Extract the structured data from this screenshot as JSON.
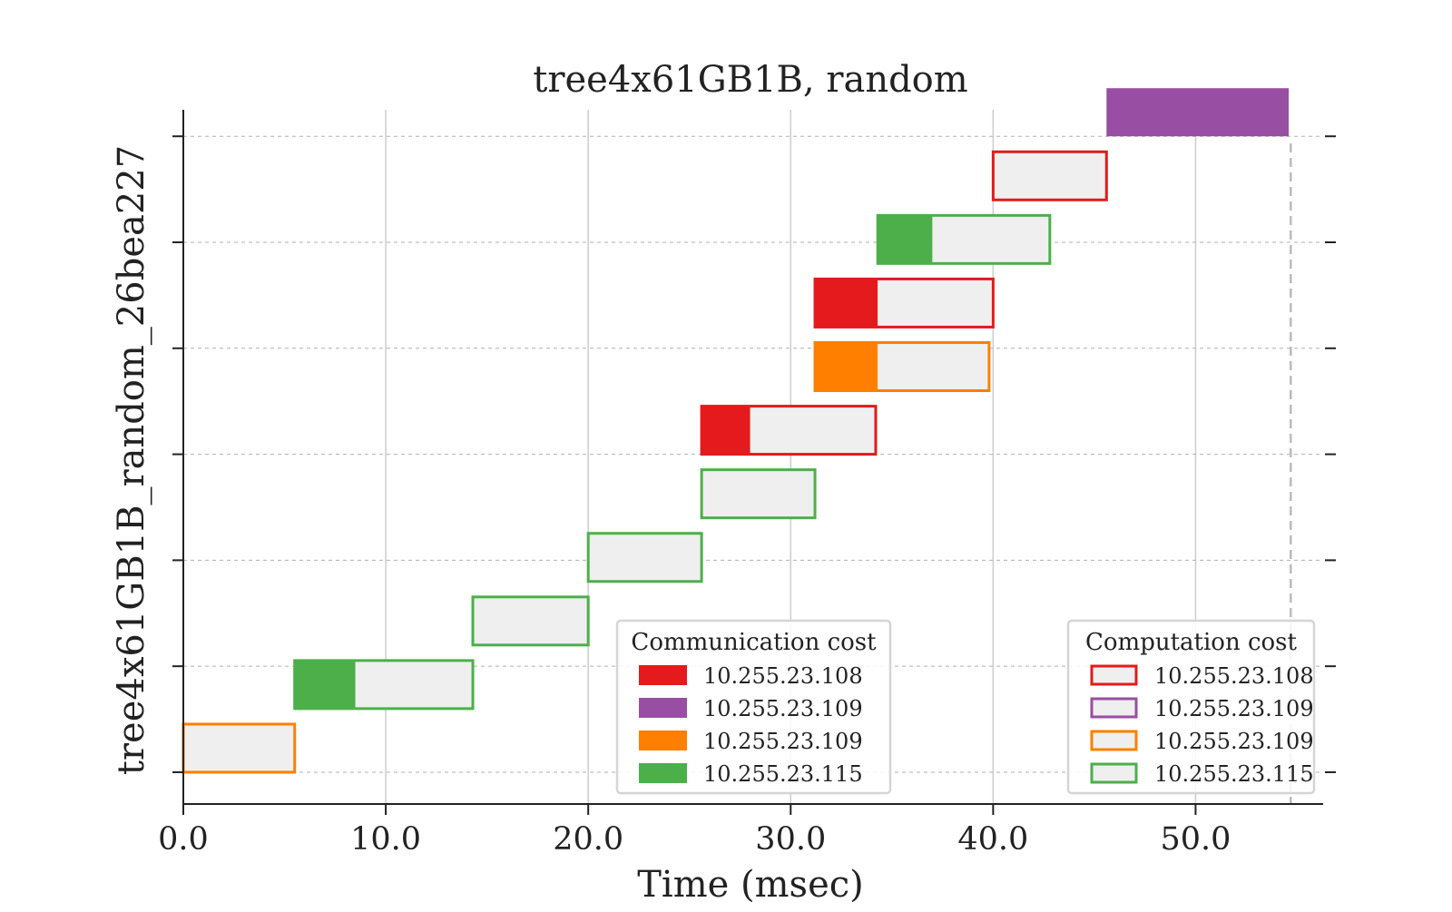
{
  "chart_data": {
    "type": "gantt",
    "title": "tree4x61GB1B, random",
    "xlabel": "Time (msec)",
    "ylabel": "tree4x61GB1B_random_26bea227",
    "xlim": [
      0,
      56.3
    ],
    "xticks": [
      0,
      10,
      20,
      30,
      40,
      50
    ],
    "xtick_labels": [
      "0.0",
      "10.0",
      "20.0",
      "30.0",
      "40.0",
      "50.0"
    ],
    "ylim": [
      -0.3,
      6.25
    ],
    "yticks": [
      0,
      1,
      2,
      3,
      4,
      5,
      6
    ],
    "end_marker_x": 54.7,
    "grid": {
      "x": true,
      "y": true
    },
    "colors": {
      "10.255.23.108": "#e41a1c",
      "10.255.23.109a": "#984ea3",
      "10.255.23.109b": "#ff7f00",
      "10.255.23.115": "#4daf4a",
      "compute_fill": "#efefef"
    },
    "legends": {
      "communication": {
        "title": "Communication cost",
        "placement": "lower-center",
        "entries": [
          {
            "label": "10.255.23.108",
            "color": "#e41a1c"
          },
          {
            "label": "10.255.23.109",
            "color": "#984ea3"
          },
          {
            "label": "10.255.23.109",
            "color": "#ff7f00"
          },
          {
            "label": "10.255.23.115",
            "color": "#4daf4a"
          }
        ]
      },
      "computation": {
        "title": "Computation cost",
        "placement": "lower-right",
        "entries": [
          {
            "label": "10.255.23.108",
            "color": "#e41a1c"
          },
          {
            "label": "10.255.23.109",
            "color": "#984ea3"
          },
          {
            "label": "10.255.23.109",
            "color": "#ff7f00"
          },
          {
            "label": "10.255.23.115",
            "color": "#4daf4a"
          }
        ]
      }
    },
    "tasks": [
      {
        "y": 0.0,
        "start": 0.0,
        "comm": 0.0,
        "end": 5.5,
        "color": "#ff7f00"
      },
      {
        "y": 0.6,
        "start": 5.5,
        "comm": 8.5,
        "end": 14.3,
        "color": "#4daf4a"
      },
      {
        "y": 1.2,
        "start": 14.3,
        "comm": 14.3,
        "end": 20.0,
        "color": "#4daf4a"
      },
      {
        "y": 1.8,
        "start": 20.0,
        "comm": 20.0,
        "end": 25.6,
        "color": "#4daf4a"
      },
      {
        "y": 2.4,
        "start": 25.6,
        "comm": 25.6,
        "end": 31.2,
        "color": "#4daf4a"
      },
      {
        "y": 3.0,
        "start": 25.6,
        "comm": 28.0,
        "end": 34.2,
        "color": "#e41a1c"
      },
      {
        "y": 3.6,
        "start": 31.2,
        "comm": 34.3,
        "end": 39.8,
        "color": "#ff7f00"
      },
      {
        "y": 4.2,
        "start": 31.2,
        "comm": 34.3,
        "end": 40.0,
        "color": "#e41a1c"
      },
      {
        "y": 4.8,
        "start": 34.3,
        "comm": 37.0,
        "end": 42.8,
        "color": "#4daf4a"
      },
      {
        "y": 5.4,
        "start": 40.0,
        "comm": 40.0,
        "end": 45.6,
        "color": "#e41a1c"
      },
      {
        "y": 6.0,
        "start": 45.6,
        "comm": 54.6,
        "end": 54.6,
        "color": "#984ea3"
      }
    ]
  }
}
